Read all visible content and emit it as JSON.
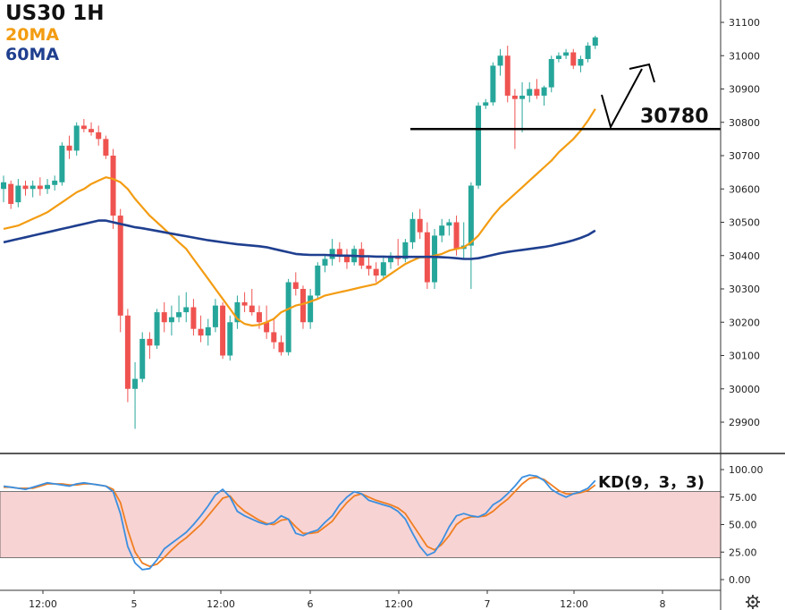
{
  "title": "US30 1H",
  "ma_fast_label": "20MA",
  "ma_slow_label": "60MA",
  "colors": {
    "up": "#26a69a",
    "down": "#ef5350",
    "ma_fast": "#f39c12",
    "ma_slow": "#1f3f8f",
    "k_line": "#3b8fe0",
    "d_line": "#f07f22",
    "kd_band": "#f8d3d3"
  },
  "settings_icon": "gear-icon",
  "chart_data": [
    {
      "type": "candlestick",
      "title": "US30 1H",
      "ylim": [
        29800,
        31150
      ],
      "yticks": [
        29900,
        30000,
        30100,
        30200,
        30300,
        30400,
        30500,
        30600,
        30700,
        30800,
        30900,
        31000,
        31100
      ],
      "xticks": [
        "12:00",
        "5",
        "12:00",
        "6",
        "12:00",
        "7",
        "12:00",
        "8"
      ],
      "annotations": [
        {
          "type": "horizontal_line",
          "value": 30780,
          "label": "30780"
        }
      ],
      "ohlc": [
        [
          30600,
          30640,
          30560,
          30620
        ],
        [
          30615,
          30625,
          30540,
          30555
        ],
        [
          30560,
          30630,
          30545,
          30610
        ],
        [
          30610,
          30625,
          30580,
          30600
        ],
        [
          30600,
          30625,
          30575,
          30610
        ],
        [
          30610,
          30635,
          30580,
          30600
        ],
        [
          30600,
          30630,
          30585,
          30612
        ],
        [
          30612,
          30640,
          30595,
          30625
        ],
        [
          30620,
          30740,
          30610,
          30730
        ],
        [
          30730,
          30760,
          30690,
          30715
        ],
        [
          30715,
          30800,
          30700,
          30790
        ],
        [
          30790,
          30810,
          30770,
          30780
        ],
        [
          30780,
          30800,
          30760,
          30770
        ],
        [
          30770,
          30790,
          30730,
          30750
        ],
        [
          30750,
          30760,
          30690,
          30700
        ],
        [
          30700,
          30720,
          30480,
          30520
        ],
        [
          30520,
          30540,
          30170,
          30220
        ],
        [
          30220,
          30240,
          29960,
          30000
        ],
        [
          30000,
          30080,
          29880,
          30030
        ],
        [
          30030,
          30170,
          30020,
          30150
        ],
        [
          30150,
          30170,
          30090,
          30130
        ],
        [
          30130,
          30240,
          30120,
          30230
        ],
        [
          30230,
          30260,
          30170,
          30200
        ],
        [
          30200,
          30250,
          30160,
          30215
        ],
        [
          30215,
          30280,
          30200,
          30230
        ],
        [
          30230,
          30290,
          30200,
          30245
        ],
        [
          30245,
          30270,
          30160,
          30180
        ],
        [
          30180,
          30220,
          30140,
          30160
        ],
        [
          30160,
          30210,
          30130,
          30185
        ],
        [
          30185,
          30270,
          30170,
          30250
        ],
        [
          30250,
          30260,
          30090,
          30100
        ],
        [
          30100,
          30220,
          30085,
          30200
        ],
        [
          30200,
          30280,
          30180,
          30260
        ],
        [
          30260,
          30290,
          30230,
          30250
        ],
        [
          30250,
          30300,
          30220,
          30230
        ],
        [
          30230,
          30250,
          30180,
          30200
        ],
        [
          30200,
          30250,
          30150,
          30170
        ],
        [
          30170,
          30210,
          30120,
          30140
        ],
        [
          30140,
          30160,
          30100,
          30110
        ],
        [
          30110,
          30330,
          30100,
          30320
        ],
        [
          30320,
          30350,
          30280,
          30300
        ],
        [
          30300,
          30310,
          30180,
          30200
        ],
        [
          30200,
          30300,
          30180,
          30280
        ],
        [
          30280,
          30380,
          30270,
          30370
        ],
        [
          30370,
          30400,
          30350,
          30390
        ],
        [
          30390,
          30450,
          30370,
          30420
        ],
        [
          30420,
          30440,
          30380,
          30400
        ],
        [
          30400,
          30420,
          30360,
          30380
        ],
        [
          30380,
          30430,
          30370,
          30420
        ],
        [
          30420,
          30440,
          30360,
          30370
        ],
        [
          30370,
          30400,
          30340,
          30360
        ],
        [
          30360,
          30380,
          30320,
          30340
        ],
        [
          30340,
          30400,
          30330,
          30380
        ],
        [
          30380,
          30410,
          30360,
          30400
        ],
        [
          30400,
          30450,
          30370,
          30390
        ],
        [
          30390,
          30450,
          30380,
          30440
        ],
        [
          30440,
          30530,
          30420,
          30510
        ],
        [
          30510,
          30540,
          30450,
          30470
        ],
        [
          30470,
          30500,
          30300,
          30320
        ],
        [
          30320,
          30480,
          30300,
          30460
        ],
        [
          30460,
          30510,
          30440,
          30490
        ],
        [
          30490,
          30510,
          30460,
          30500
        ],
        [
          30500,
          30520,
          30400,
          30420
        ],
        [
          30420,
          30500,
          30390,
          30430
        ],
        [
          30430,
          30620,
          30300,
          30610
        ],
        [
          30610,
          30860,
          30600,
          30850
        ],
        [
          30850,
          30870,
          30840,
          30860
        ],
        [
          30860,
          30980,
          30850,
          30970
        ],
        [
          30970,
          31020,
          30940,
          31000
        ],
        [
          31000,
          31030,
          30860,
          30880
        ],
        [
          30880,
          30900,
          30720,
          30870
        ],
        [
          30870,
          30920,
          30770,
          30880
        ],
        [
          30880,
          30920,
          30860,
          30900
        ],
        [
          30900,
          30930,
          30870,
          30880
        ],
        [
          30880,
          30910,
          30850,
          30905
        ],
        [
          30905,
          31000,
          30890,
          30990
        ],
        [
          30990,
          31010,
          30980,
          31000
        ],
        [
          31000,
          31020,
          30990,
          31010
        ],
        [
          31010,
          31020,
          30960,
          30970
        ],
        [
          30970,
          31000,
          30950,
          30990
        ],
        [
          30990,
          31040,
          30980,
          31030
        ],
        [
          31030,
          31060,
          31020,
          31055
        ]
      ],
      "series": [
        {
          "name": "20MA",
          "values": [
            30480,
            30485,
            30490,
            30500,
            30510,
            30520,
            30530,
            30545,
            30560,
            30575,
            30590,
            30600,
            30615,
            30625,
            30635,
            30630,
            30620,
            30600,
            30570,
            30545,
            30520,
            30500,
            30480,
            30460,
            30440,
            30420,
            30390,
            30360,
            30330,
            30300,
            30270,
            30240,
            30210,
            30195,
            30190,
            30192,
            30200,
            30210,
            30230,
            30240,
            30250,
            30255,
            30262,
            30270,
            30280,
            30285,
            30290,
            30295,
            30300,
            30305,
            30310,
            30315,
            30330,
            30345,
            30360,
            30375,
            30385,
            30395,
            30395,
            30400,
            30405,
            30415,
            30420,
            30425,
            30440,
            30460,
            30490,
            30520,
            30545,
            30565,
            30585,
            30605,
            30625,
            30645,
            30665,
            30685,
            30710,
            30730,
            30750,
            30775,
            30805,
            30840
          ]
        },
        {
          "name": "60MA",
          "values": [
            30440,
            30445,
            30450,
            30455,
            30460,
            30465,
            30470,
            30475,
            30480,
            30485,
            30490,
            30495,
            30500,
            30505,
            30505,
            30500,
            30495,
            30490,
            30485,
            30482,
            30478,
            30474,
            30470,
            30466,
            30462,
            30458,
            30454,
            30450,
            30446,
            30443,
            30440,
            30437,
            30434,
            30432,
            30430,
            30428,
            30425,
            30420,
            30415,
            30410,
            30405,
            30403,
            30402,
            30402,
            30402,
            30401,
            30400,
            30400,
            30399,
            30398,
            30398,
            30397,
            30397,
            30396,
            30396,
            30396,
            30396,
            30396,
            30396,
            30396,
            30395,
            30394,
            30392,
            30390,
            30390,
            30392,
            30397,
            30402,
            30407,
            30411,
            30414,
            30417,
            30420,
            30423,
            30426,
            30430,
            30435,
            30440,
            30446,
            30453,
            30462,
            30475
          ]
        }
      ]
    },
    {
      "type": "line",
      "title": "KD(9，3，3)",
      "ylim": [
        -10,
        105
      ],
      "yticks": [
        "100.00",
        "75.00",
        "50.00",
        "25.00",
        "0.00"
      ],
      "band": [
        20,
        80
      ],
      "series": [
        {
          "name": "K",
          "values": [
            85,
            84,
            83,
            82,
            84,
            86,
            88,
            87,
            86,
            85,
            87,
            88,
            87,
            86,
            85,
            80,
            60,
            30,
            15,
            9,
            10,
            18,
            28,
            33,
            38,
            43,
            50,
            58,
            67,
            77,
            82,
            75,
            62,
            58,
            55,
            52,
            50,
            52,
            58,
            55,
            42,
            40,
            43,
            45,
            52,
            58,
            68,
            75,
            80,
            78,
            72,
            70,
            68,
            66,
            62,
            55,
            42,
            30,
            22,
            25,
            35,
            48,
            58,
            60,
            58,
            57,
            60,
            68,
            72,
            78,
            85,
            93,
            95,
            94,
            90,
            82,
            78,
            75,
            78,
            80,
            83,
            90
          ]
        },
        {
          "name": "D",
          "values": [
            84,
            84,
            83,
            83,
            83,
            85,
            87,
            87,
            87,
            86,
            86,
            87,
            87,
            86,
            85,
            82,
            70,
            45,
            25,
            15,
            12,
            14,
            20,
            27,
            33,
            38,
            44,
            50,
            58,
            66,
            74,
            76,
            68,
            62,
            58,
            54,
            51,
            50,
            54,
            55,
            48,
            42,
            42,
            43,
            48,
            53,
            62,
            70,
            76,
            78,
            75,
            72,
            70,
            68,
            65,
            60,
            50,
            40,
            30,
            27,
            32,
            40,
            50,
            55,
            57,
            57,
            58,
            62,
            68,
            73,
            80,
            87,
            92,
            93,
            91,
            86,
            81,
            78,
            78,
            79,
            81,
            86
          ]
        }
      ]
    }
  ]
}
